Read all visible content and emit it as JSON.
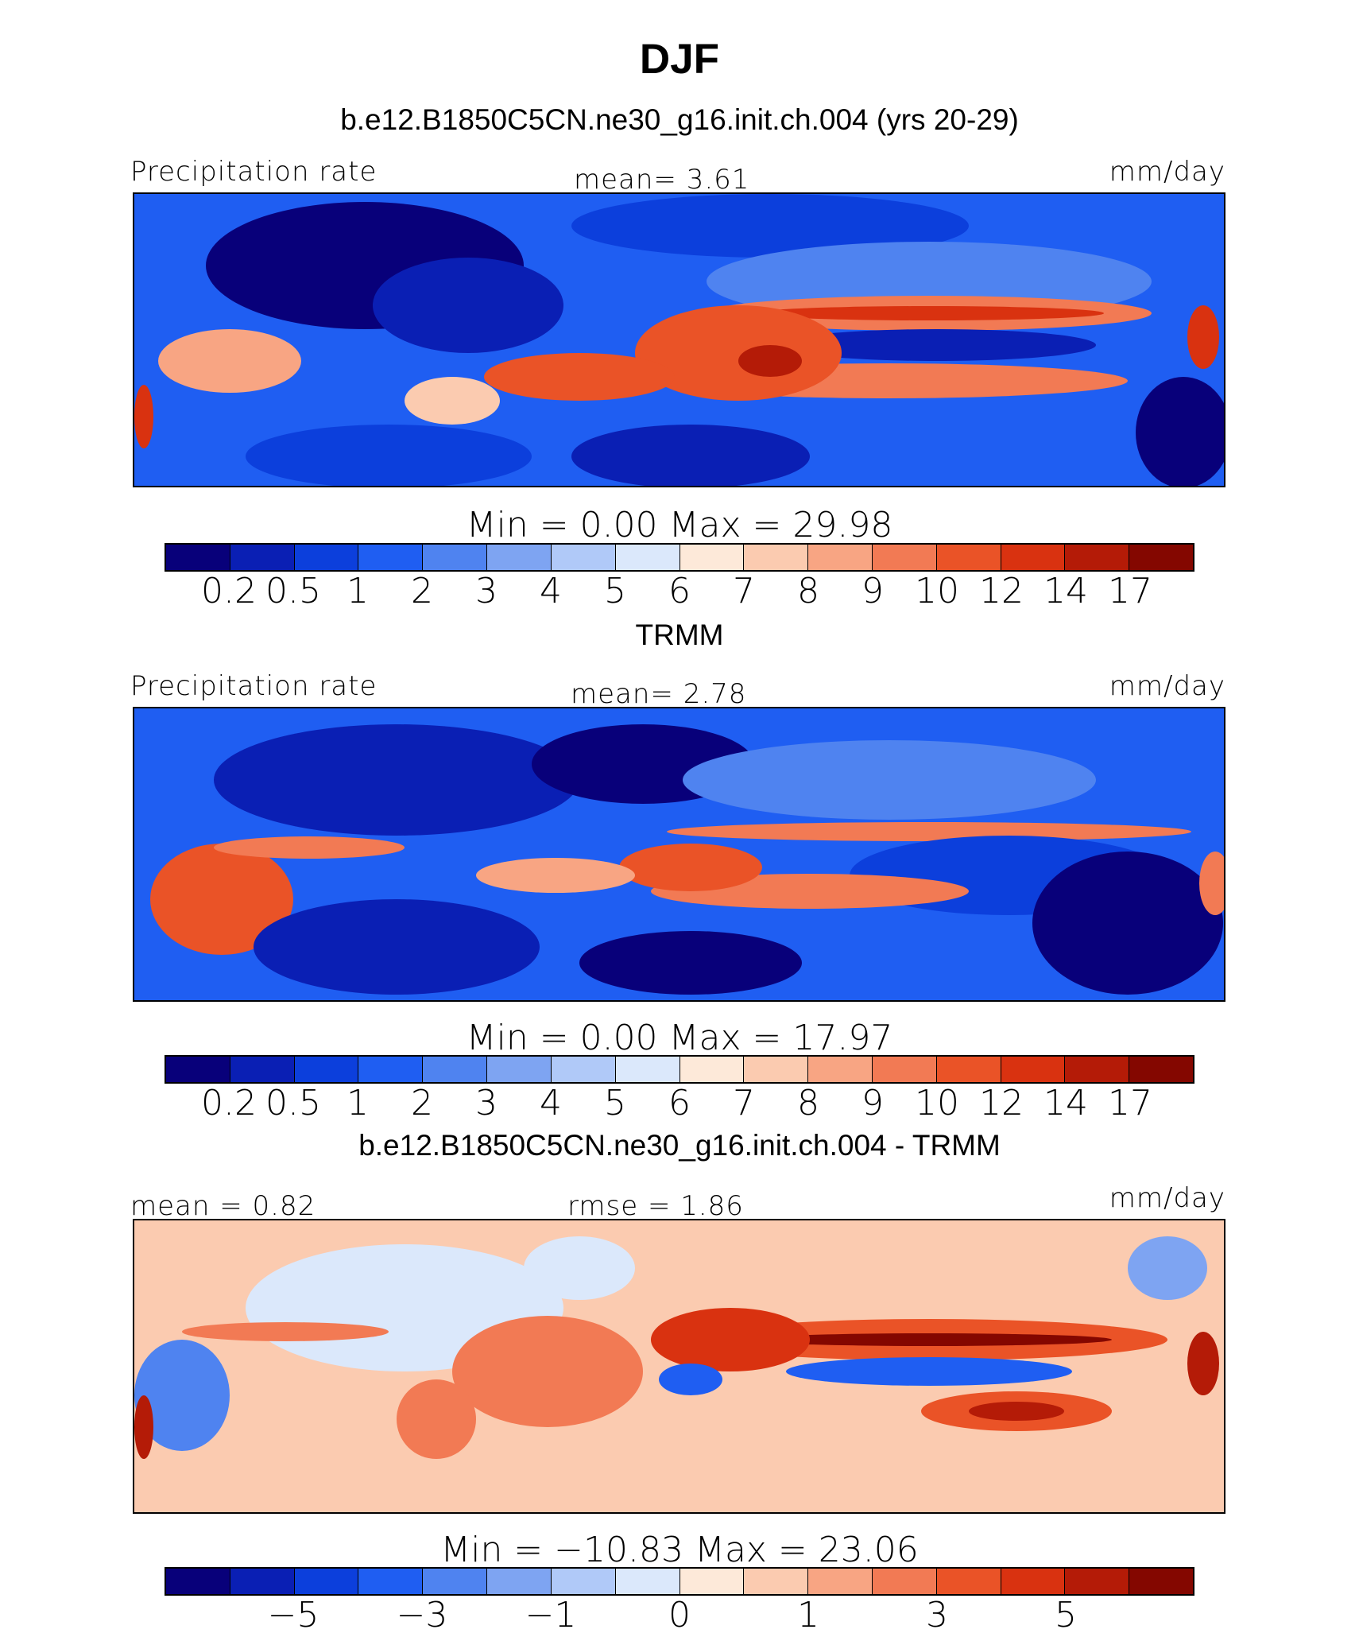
{
  "title": "DJF",
  "colors": {
    "scale": [
      "#08007a",
      "#0a1fb4",
      "#0c3fdc",
      "#1f5ef2",
      "#4f83f0",
      "#7ea4f2",
      "#b0c9f8",
      "#dbe8fb",
      "#fde9d9",
      "#fbcbb0",
      "#f8a583",
      "#f27a54",
      "#ea5327",
      "#d93210",
      "#b41b07",
      "#840700"
    ],
    "border": "#000000"
  },
  "panels": [
    {
      "subtitle": "b.e12.B1850C5CN.ne30_g16.init.ch.004 (yrs 20-29)",
      "left_label": "Precipitation rate",
      "center_label": "mean=   3.61",
      "units": "mm/day",
      "minmax": "Min  =    0.00  Max  =   29.98",
      "ticks": [
        "0.2",
        "0.5",
        "1",
        "2",
        "3",
        "4",
        "5",
        "6",
        "7",
        "8",
        "9",
        "10",
        "12",
        "14",
        "17"
      ]
    },
    {
      "subtitle": "TRMM",
      "left_label": "Precipitation rate",
      "center_label": "mean=   2.78",
      "units": "mm/day",
      "minmax": "Min  =    0.00  Max  =   17.97",
      "ticks": [
        "0.2",
        "0.5",
        "1",
        "2",
        "3",
        "4",
        "5",
        "6",
        "7",
        "8",
        "9",
        "10",
        "12",
        "14",
        "17"
      ]
    },
    {
      "subtitle": "b.e12.B1850C5CN.ne30_g16.init.ch.004 - TRMM",
      "left_label": "mean  =   0.82",
      "center_label": "rmse  =    1.86",
      "units": "mm/day",
      "minmax": "Min  = −10.83  Max  =   23.06",
      "ticks": [
        "−5",
        "−3",
        "−1",
        "0",
        "1",
        "3",
        "5"
      ]
    }
  ]
}
